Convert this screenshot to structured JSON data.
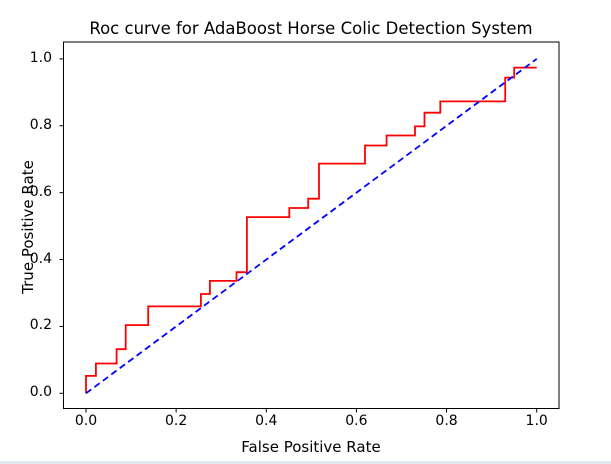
{
  "chart_data": {
    "type": "line",
    "title": "Roc curve for AdaBoost Horse Colic Detection System",
    "xlabel": "False Positive Rate",
    "ylabel": "True Positive Rate",
    "xlim": [
      -0.05,
      1.05
    ],
    "ylim": [
      -0.05,
      1.05
    ],
    "xticks": [
      "0.0",
      "0.2",
      "0.4",
      "0.6",
      "0.8",
      "1.0"
    ],
    "yticks": [
      "0.0",
      "0.2",
      "0.4",
      "0.6",
      "0.8",
      "1.0"
    ],
    "grid": false,
    "legend": "none",
    "colors": {
      "roc_curve": "#ff0000",
      "diagonal": "#0000ff",
      "axes": "#000000",
      "background": "#ffffff"
    },
    "series": [
      {
        "name": "AdaBoost ROC staircase",
        "color": "#ff0000",
        "line_style": "solid",
        "x": [
          0.0,
          0.0,
          0.022,
          0.022,
          0.068,
          0.068,
          0.088,
          0.088,
          0.138,
          0.138,
          0.255,
          0.255,
          0.275,
          0.275,
          0.334,
          0.334,
          0.357,
          0.357,
          0.451,
          0.451,
          0.493,
          0.493,
          0.517,
          0.517,
          0.619,
          0.619,
          0.667,
          0.667,
          0.73,
          0.73,
          0.751,
          0.751,
          0.786,
          0.786,
          0.93,
          0.93,
          0.95,
          0.95,
          1.0
        ],
        "y": [
          0.0,
          0.052,
          0.052,
          0.089,
          0.089,
          0.132,
          0.132,
          0.204,
          0.204,
          0.26,
          0.26,
          0.297,
          0.297,
          0.336,
          0.336,
          0.362,
          0.362,
          0.527,
          0.527,
          0.554,
          0.554,
          0.582,
          0.582,
          0.687,
          0.687,
          0.741,
          0.741,
          0.771,
          0.771,
          0.798,
          0.798,
          0.839,
          0.839,
          0.873,
          0.873,
          0.944,
          0.944,
          0.974,
          0.974
        ]
      },
      {
        "name": "random guess diagonal",
        "color": "#0000ff",
        "line_style": "dashed",
        "x": [
          0.0,
          1.0
        ],
        "y": [
          0.0,
          1.0
        ]
      }
    ]
  }
}
